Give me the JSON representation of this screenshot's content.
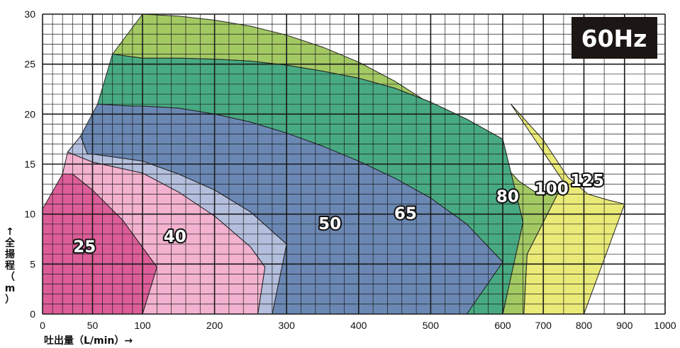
{
  "chart_data": {
    "type": "area",
    "frequency_label": "60Hz",
    "xlabel": "吐出量（L/min）→",
    "ylabel": [
      "↑",
      "全",
      "揚",
      "程",
      "（",
      "m",
      "）"
    ],
    "x_axis": {
      "segments": [
        {
          "from": 0,
          "to": 100,
          "minor_step": 10
        },
        {
          "from": 100,
          "to": 600,
          "minor_step": 20
        },
        {
          "from": 600,
          "to": 1000,
          "minor_step": 50
        }
      ],
      "ticks": [
        0,
        50,
        100,
        200,
        300,
        400,
        500,
        600,
        700,
        800,
        900,
        1000
      ]
    },
    "ylim": [
      0,
      30
    ],
    "y_ticks": [
      0,
      5,
      10,
      15,
      20,
      25,
      30
    ],
    "y_minor_step": 1,
    "grid": true,
    "series": [
      {
        "name": "125",
        "color": "#eaea78",
        "label_at": [
          808,
          12.8
        ],
        "boundary": [
          [
            620,
            21
          ],
          [
            700,
            17.4
          ],
          [
            760,
            13.7
          ],
          [
            810,
            12
          ],
          [
            860,
            11.4
          ],
          [
            900,
            11
          ],
          [
            800,
            0
          ],
          [
            652,
            0
          ],
          [
            660,
            6
          ],
          [
            750,
            13.2
          ]
        ]
      },
      {
        "name": "100",
        "color": "#a3c963",
        "label_at": [
          720,
          12
        ],
        "boundary": [
          [
            100,
            30
          ],
          [
            150,
            29.8
          ],
          [
            200,
            29.4
          ],
          [
            250,
            28.8
          ],
          [
            300,
            27.9
          ],
          [
            350,
            26.7
          ],
          [
            400,
            25.2
          ],
          [
            450,
            23.3
          ],
          [
            500,
            21
          ],
          [
            550,
            18.2
          ],
          [
            600,
            15
          ],
          [
            640,
            13.3
          ],
          [
            680,
            12.2
          ],
          [
            700,
            11.8
          ],
          [
            750,
            13.2
          ],
          [
            660,
            6
          ],
          [
            652,
            0
          ],
          [
            600,
            0
          ],
          [
            650,
            9.2
          ],
          [
            600,
            17.5
          ],
          [
            550,
            19.5
          ],
          [
            500,
            21.2
          ],
          [
            450,
            22.6
          ],
          [
            400,
            23.6
          ],
          [
            350,
            24.3
          ],
          [
            300,
            24.9
          ],
          [
            250,
            25.3
          ],
          [
            200,
            25.5
          ],
          [
            150,
            25.6
          ],
          [
            100,
            25.6
          ],
          [
            70,
            26
          ]
        ]
      },
      {
        "name": "80",
        "color": "#48aa82",
        "label_at": [
          612,
          11.2
        ],
        "boundary": [
          [
            70,
            26
          ],
          [
            100,
            25.6
          ],
          [
            150,
            25.6
          ],
          [
            200,
            25.5
          ],
          [
            250,
            25.3
          ],
          [
            300,
            24.9
          ],
          [
            350,
            24.3
          ],
          [
            400,
            23.6
          ],
          [
            450,
            22.6
          ],
          [
            500,
            21.2
          ],
          [
            550,
            19.5
          ],
          [
            600,
            17.5
          ],
          [
            650,
            9.2
          ],
          [
            600,
            0
          ],
          [
            550,
            0
          ],
          [
            600,
            5.2
          ],
          [
            550,
            9
          ],
          [
            500,
            11.6
          ],
          [
            450,
            13.6
          ],
          [
            400,
            15.3
          ],
          [
            350,
            16.8
          ],
          [
            300,
            18.1
          ],
          [
            250,
            19.2
          ],
          [
            200,
            20
          ],
          [
            150,
            20.6
          ],
          [
            100,
            20.8
          ],
          [
            90,
            20.8
          ],
          [
            55,
            21
          ]
        ]
      },
      {
        "name": "65",
        "color": "#6b88b4",
        "label_at": [
          465,
          9.5
        ],
        "boundary": [
          [
            55,
            21
          ],
          [
            90,
            20.8
          ],
          [
            100,
            20.8
          ],
          [
            150,
            20.6
          ],
          [
            200,
            20
          ],
          [
            250,
            19.2
          ],
          [
            300,
            18.1
          ],
          [
            350,
            16.8
          ],
          [
            400,
            15.3
          ],
          [
            450,
            13.6
          ],
          [
            500,
            11.6
          ],
          [
            550,
            9
          ],
          [
            600,
            5.2
          ],
          [
            550,
            0
          ],
          [
            280,
            0
          ],
          [
            300,
            7
          ],
          [
            250,
            10.2
          ],
          [
            200,
            12.4
          ],
          [
            150,
            14
          ],
          [
            100,
            15.3
          ],
          [
            50,
            16
          ],
          [
            45,
            16
          ],
          [
            38,
            17.8
          ]
        ]
      },
      {
        "name": "50",
        "color": "#b4bedd",
        "label_at": [
          360,
          8.5
        ],
        "boundary": [
          [
            38,
            17.8
          ],
          [
            45,
            16
          ],
          [
            50,
            16
          ],
          [
            100,
            15.3
          ],
          [
            150,
            14
          ],
          [
            200,
            12.4
          ],
          [
            250,
            10.2
          ],
          [
            300,
            7
          ],
          [
            280,
            0
          ],
          [
            260,
            0
          ],
          [
            270,
            4.7
          ],
          [
            250,
            6.7
          ],
          [
            200,
            9.8
          ],
          [
            150,
            12.2
          ],
          [
            100,
            14.1
          ],
          [
            50,
            15.2
          ],
          [
            30,
            16
          ],
          [
            25,
            16.2
          ]
        ]
      },
      {
        "name": "40",
        "color": "#f3b2cf",
        "label_at": [
          145,
          7.2
        ],
        "boundary": [
          [
            25,
            16.2
          ],
          [
            30,
            16
          ],
          [
            50,
            15.2
          ],
          [
            100,
            14.1
          ],
          [
            150,
            12.2
          ],
          [
            200,
            9.8
          ],
          [
            250,
            6.7
          ],
          [
            270,
            4.7
          ],
          [
            260,
            0
          ],
          [
            100,
            0
          ],
          [
            120,
            4.7
          ],
          [
            80,
            9.4
          ],
          [
            50,
            12.4
          ],
          [
            30,
            14
          ],
          [
            20,
            14
          ]
        ]
      },
      {
        "name": "25",
        "color": "#dc5d98",
        "label_at": [
          42,
          6.2
        ],
        "boundary": [
          [
            0,
            10.5
          ],
          [
            20,
            14
          ],
          [
            30,
            14
          ],
          [
            50,
            12.4
          ],
          [
            80,
            9.4
          ],
          [
            120,
            4.7
          ],
          [
            100,
            0
          ],
          [
            0,
            0
          ]
        ]
      }
    ]
  }
}
